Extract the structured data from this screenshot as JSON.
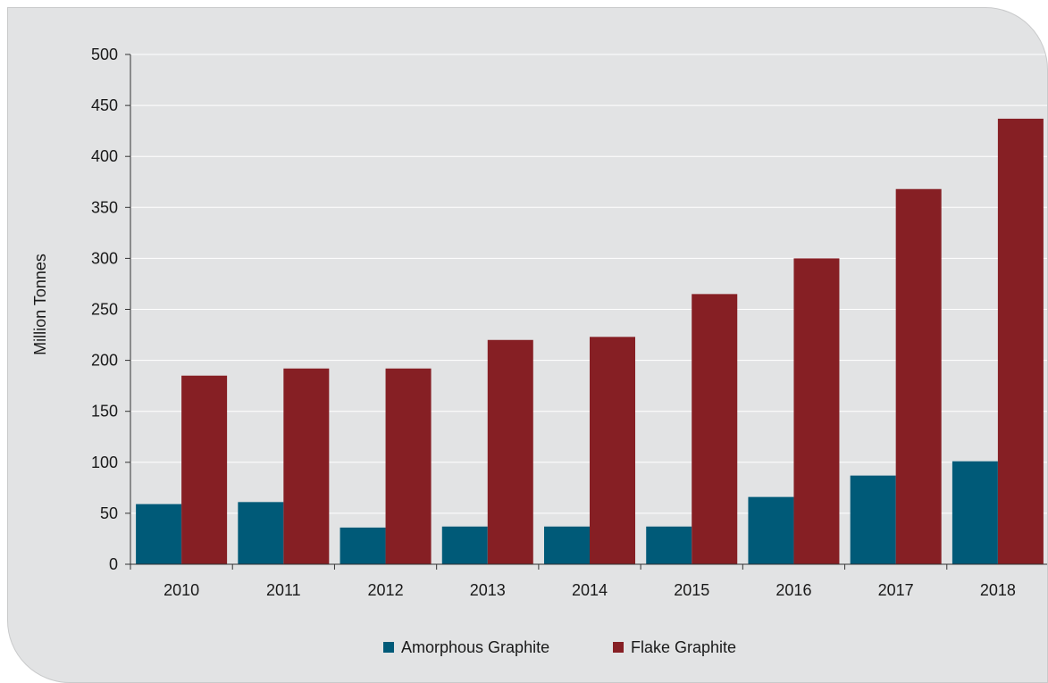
{
  "chart_data": {
    "type": "bar",
    "categories": [
      "2010",
      "2011",
      "2012",
      "2013",
      "2014",
      "2015",
      "2016",
      "2017",
      "2018"
    ],
    "series": [
      {
        "name": "Amorphous Graphite",
        "color": "#005a78",
        "values": [
          59,
          61,
          36,
          37,
          37,
          37,
          66,
          87,
          101
        ]
      },
      {
        "name": "Flake Graphite",
        "color": "#861f24",
        "values": [
          185,
          192,
          192,
          220,
          223,
          265,
          300,
          368,
          437
        ]
      }
    ],
    "title": "",
    "xlabel": "",
    "ylabel": "Million Tonnes",
    "ylim": [
      0,
      500
    ],
    "yticks": [
      0,
      50,
      100,
      150,
      200,
      250,
      300,
      350,
      400,
      450,
      500
    ],
    "grid": true,
    "legend_position": "bottom"
  }
}
